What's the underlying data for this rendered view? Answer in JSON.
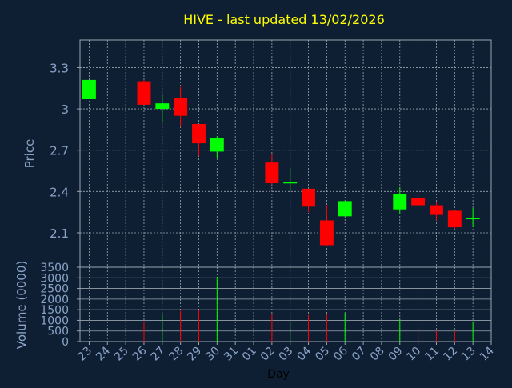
{
  "chart_data": {
    "type": "candlestick",
    "title": "HIVE - last updated 13/02/2026",
    "xlabel": "Day",
    "price_panel": {
      "ylabel": "Price",
      "ylim": [
        1.85,
        3.5
      ],
      "yticks": [
        "2.1",
        "2.4",
        "2.7",
        "3",
        "3.3"
      ],
      "ytick_values": [
        2.1,
        2.4,
        2.7,
        3.0,
        3.3
      ]
    },
    "volume_panel": {
      "ylabel": "Volume (0000)",
      "ylim": [
        0,
        3500
      ],
      "yticks": [
        "0",
        "500",
        "1000",
        "1500",
        "2000",
        "2500",
        "3000",
        "3500"
      ],
      "ytick_values": [
        0,
        500,
        1000,
        1500,
        2000,
        2500,
        3000,
        3500
      ]
    },
    "x_ticks": [
      "23",
      "24",
      "25",
      "26",
      "27",
      "28",
      "29",
      "30",
      "31",
      "01",
      "02",
      "03",
      "04",
      "05",
      "06",
      "07",
      "08",
      "09",
      "10",
      "11",
      "12",
      "13",
      "14"
    ],
    "candles": [
      {
        "day": "23",
        "open": 3.07,
        "close": 3.21,
        "high": 3.21,
        "low": 3.07,
        "volume": 0
      },
      {
        "day": "26",
        "open": 3.2,
        "close": 3.03,
        "high": 3.21,
        "low": 3.03,
        "volume": 950
      },
      {
        "day": "27",
        "open": 3.0,
        "close": 3.04,
        "high": 3.1,
        "low": 2.9,
        "volume": 1300
      },
      {
        "day": "28",
        "open": 3.08,
        "close": 2.95,
        "high": 3.16,
        "low": 2.87,
        "volume": 1450
      },
      {
        "day": "29",
        "open": 2.89,
        "close": 2.75,
        "high": 2.89,
        "low": 2.66,
        "volume": 1500
      },
      {
        "day": "30",
        "open": 2.69,
        "close": 2.79,
        "high": 2.8,
        "low": 2.64,
        "volume": 3050
      },
      {
        "day": "02",
        "open": 2.61,
        "close": 2.46,
        "high": 2.67,
        "low": 2.45,
        "volume": 1300
      },
      {
        "day": "03",
        "open": 2.47,
        "close": 2.47,
        "high": 2.57,
        "low": 2.4,
        "volume": 950
      },
      {
        "day": "04",
        "open": 2.42,
        "close": 2.29,
        "high": 2.42,
        "low": 2.25,
        "volume": 1250
      },
      {
        "day": "05",
        "open": 2.19,
        "close": 2.01,
        "high": 2.3,
        "low": 2.0,
        "volume": 1300
      },
      {
        "day": "06",
        "open": 2.22,
        "close": 2.33,
        "high": 2.33,
        "low": 2.22,
        "volume": 1350
      },
      {
        "day": "09",
        "open": 2.27,
        "close": 2.38,
        "high": 2.43,
        "low": 2.24,
        "volume": 1050
      },
      {
        "day": "10",
        "open": 2.35,
        "close": 2.3,
        "high": 2.38,
        "low": 2.3,
        "volume": 600
      },
      {
        "day": "11",
        "open": 2.3,
        "close": 2.23,
        "high": 2.32,
        "low": 2.19,
        "volume": 500
      },
      {
        "day": "12",
        "open": 2.26,
        "close": 2.14,
        "high": 2.26,
        "low": 2.13,
        "volume": 500
      },
      {
        "day": "13",
        "open": 2.2,
        "close": 2.21,
        "high": 2.28,
        "low": 2.14,
        "volume": 950
      }
    ]
  },
  "colors": {
    "background": "#0f1f33",
    "up": "#00ff00",
    "down": "#ff0000",
    "doji": "#00ff00",
    "grid": "#9aa4b0",
    "axis_text": "#8aa4c8",
    "title": "#ffff00",
    "xlabel": "#000000"
  }
}
